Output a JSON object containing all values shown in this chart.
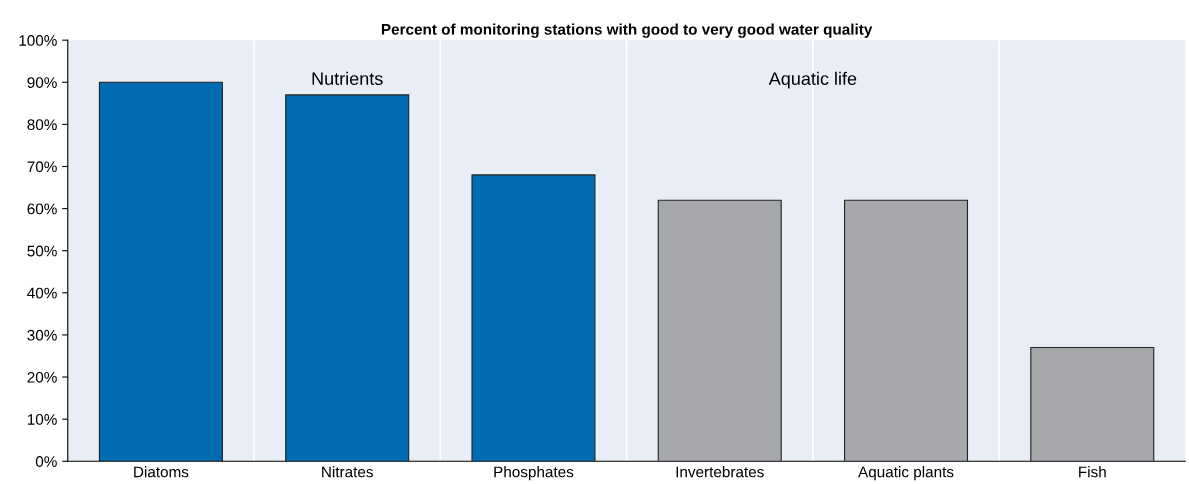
{
  "chart_data": {
    "type": "bar",
    "title": "Percent of monitoring stations with good to very good water quality",
    "categories": [
      "Diatoms",
      "Nitrates",
      "Phosphates",
      "Invertebrates",
      "Aquatic plants",
      "Fish"
    ],
    "values": [
      90,
      87,
      68,
      62,
      62,
      27
    ],
    "colors": [
      "#006bb0",
      "#006bb0",
      "#006bb0",
      "#a5a7aa",
      "#a5a7aa",
      "#a5a7aa"
    ],
    "ylim": [
      0,
      100
    ],
    "yticks": [
      {
        "value": 0,
        "label": "0%"
      },
      {
        "value": 10,
        "label": "10%"
      },
      {
        "value": 20,
        "label": "20%"
      },
      {
        "value": 30,
        "label": "30%"
      },
      {
        "value": 40,
        "label": "40%"
      },
      {
        "value": 50,
        "label": "50%"
      },
      {
        "value": 60,
        "label": "60%"
      },
      {
        "value": 70,
        "label": "70%"
      },
      {
        "value": 80,
        "label": "80%"
      },
      {
        "value": 90,
        "label": "90%"
      },
      {
        "value": 100,
        "label": "100%"
      }
    ],
    "grid": "x",
    "annotations": [
      "Nutrients",
      "Aquatic life"
    ]
  }
}
